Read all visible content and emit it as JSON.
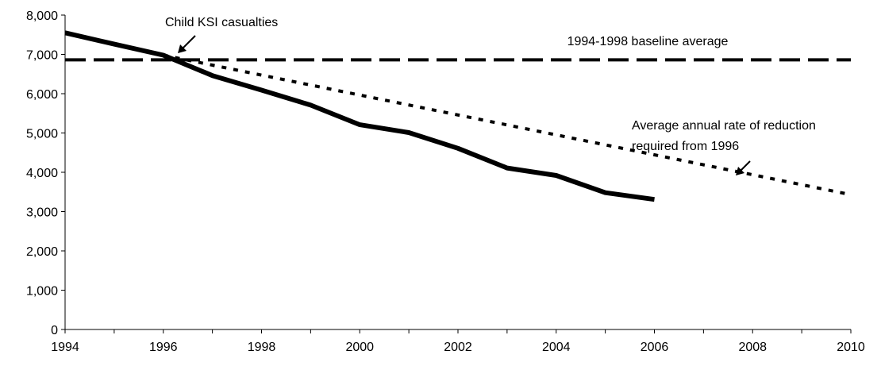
{
  "chart_data": {
    "type": "line",
    "title": "",
    "xlabel": "",
    "ylabel": "",
    "xlim": [
      1994,
      2010
    ],
    "ylim": [
      0,
      8000
    ],
    "x_ticks": [
      "1994",
      "1996",
      "1998",
      "2000",
      "2002",
      "2004",
      "2006",
      "2008",
      "2010"
    ],
    "y_ticks": [
      "0",
      "1,000",
      "2,000",
      "3,000",
      "4,000",
      "5,000",
      "6,000",
      "7,000",
      "8,000"
    ],
    "grid": false,
    "legend": "none",
    "series": [
      {
        "name": "Child KSI casualties",
        "style": "solid-thick",
        "color": "#000000",
        "x": [
          1994,
          1995,
          1996,
          1997,
          1998,
          1999,
          2000,
          2001,
          2002,
          2003,
          2004,
          2005,
          2006
        ],
        "values": [
          7550,
          7260,
          6980,
          6460,
          6090,
          5710,
          5210,
          5010,
          4610,
          4110,
          3920,
          3480,
          3310
        ]
      },
      {
        "name": "1994-1998 baseline average",
        "style": "dashed",
        "color": "#000000",
        "x": [
          1994,
          2010
        ],
        "values": [
          6860,
          6860
        ]
      },
      {
        "name": "Average annual rate of reduction required from 1996",
        "style": "dotted",
        "color": "#000000",
        "x": [
          1996,
          2010
        ],
        "values": [
          6980,
          3430
        ]
      }
    ],
    "annotations": {
      "child_ksi": "Child KSI casualties",
      "baseline": "1994-1998 baseline average",
      "reduction_line1": "Average annual rate of reduction",
      "reduction_line2": "required from 1996"
    }
  }
}
